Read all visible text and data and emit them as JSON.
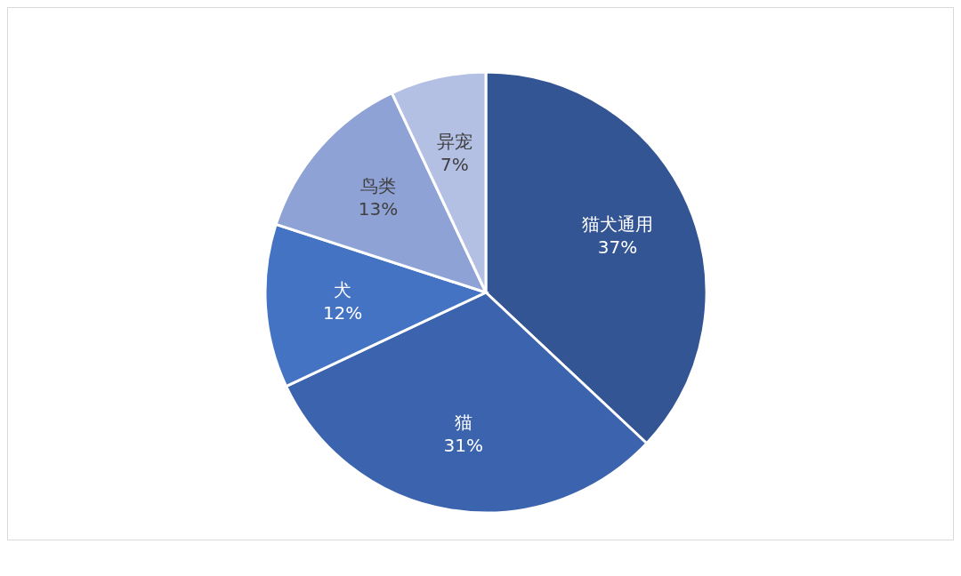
{
  "chart_data": {
    "type": "pie",
    "categories": [
      "猫犬通用",
      "猫",
      "犬",
      "鸟类",
      "异宠"
    ],
    "values": [
      37,
      31,
      12,
      13,
      7
    ],
    "colors": [
      "#335593",
      "#3b63ae",
      "#4573c4",
      "#8ea2d5",
      "#b4c0e3"
    ],
    "value_labels": [
      "37%",
      "31%",
      "12%",
      "13%",
      "7%"
    ],
    "legend": false
  }
}
